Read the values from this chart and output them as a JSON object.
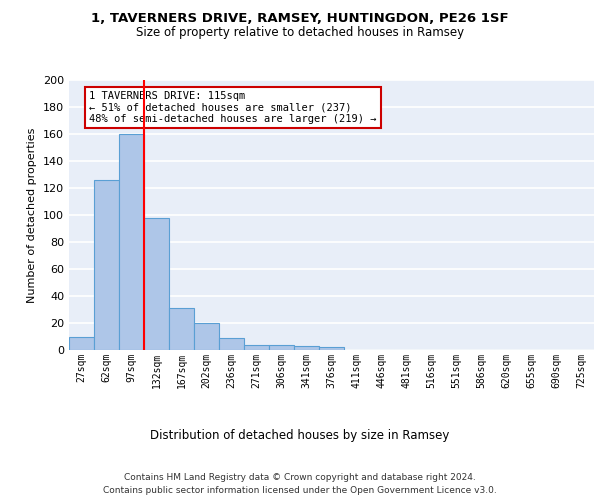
{
  "title1": "1, TAVERNERS DRIVE, RAMSEY, HUNTINGDON, PE26 1SF",
  "title2": "Size of property relative to detached houses in Ramsey",
  "xlabel": "Distribution of detached houses by size in Ramsey",
  "ylabel": "Number of detached properties",
  "categories": [
    "27sqm",
    "62sqm",
    "97sqm",
    "132sqm",
    "167sqm",
    "202sqm",
    "236sqm",
    "271sqm",
    "306sqm",
    "341sqm",
    "376sqm",
    "411sqm",
    "446sqm",
    "481sqm",
    "516sqm",
    "551sqm",
    "586sqm",
    "620sqm",
    "655sqm",
    "690sqm",
    "725sqm"
  ],
  "values": [
    10,
    126,
    160,
    98,
    31,
    20,
    9,
    4,
    4,
    3,
    2,
    0,
    0,
    0,
    0,
    0,
    0,
    0,
    0,
    0,
    0
  ],
  "bar_color": "#aec6e8",
  "bar_edge_color": "#5a9fd4",
  "background_color": "#e8eef8",
  "grid_color": "#ffffff",
  "red_line_x": 2.5,
  "annotation_text": "1 TAVERNERS DRIVE: 115sqm\n← 51% of detached houses are smaller (237)\n48% of semi-detached houses are larger (219) →",
  "annotation_box_color": "#ffffff",
  "annotation_box_edge": "#cc0000",
  "ylim": [
    0,
    200
  ],
  "yticks": [
    0,
    20,
    40,
    60,
    80,
    100,
    120,
    140,
    160,
    180,
    200
  ],
  "footer": "Contains HM Land Registry data © Crown copyright and database right 2024.\nContains public sector information licensed under the Open Government Licence v3.0."
}
